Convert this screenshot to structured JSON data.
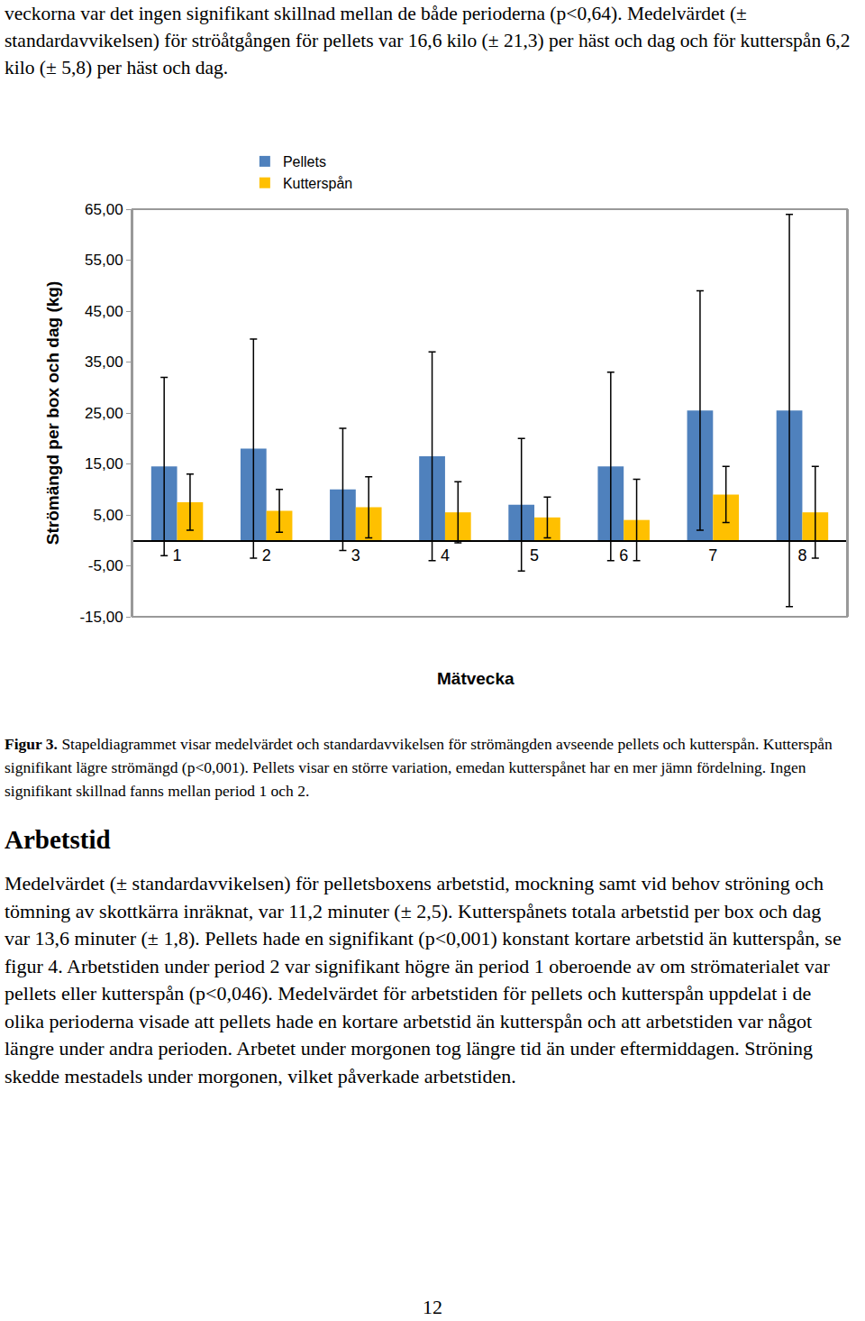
{
  "document": {
    "intro": "veckorna var det ingen signifikant skillnad mellan de både perioderna (p<0,64). Medelvärdet (± standardavvikelsen) för ströåtgången för pellets var 16,6 kilo (± 21,3) per häst och dag och för kutterspån 6,2 kilo (± 5,8) per häst och dag.",
    "figure": {
      "label": "Figur 3.",
      "caption": "Stapeldiagrammet visar medelvärdet och standardavvikelsen för strömängden avseende pellets och kutterspån. Kutterspån signifikant lägre strömängd (p<0,001). Pellets visar en större variation, emedan kutterspånet har en mer jämn fördelning. Ingen signifikant skillnad fanns mellan period 1 och 2."
    },
    "heading": "Arbetstid",
    "body": "Medelvärdet (± standardavvikelsen) för pelletsboxens arbetstid, mockning samt vid behov ströning och tömning av skottkärra inräknat, var 11,2 minuter (± 2,5). Kutterspånets totala arbetstid per box och dag var 13,6 minuter (± 1,8). Pellets hade en signifikant (p<0,001) konstant kortare arbetstid än kutterspån, se figur 4. Arbetstiden under period 2 var signifikant högre än period 1 oberoende av om strömaterialet var pellets eller kutterspån (p<0,046). Medelvärdet för arbetstiden för pellets och kutterspån uppdelat i de olika perioderna visade att pellets hade en kortare arbetstid än kutterspån och att arbetstiden var något längre under andra perioden. Arbetet under morgonen tog längre tid än under eftermiddagen. Ströning skedde mestadels under morgonen, vilket påverkade arbetstiden.",
    "page_number": "12"
  },
  "chart_data": {
    "type": "bar",
    "xlabel": "Mätvecka",
    "ylabel": "Strömängd per box och dag (kg)",
    "categories": [
      "1",
      "2",
      "3",
      "4",
      "5",
      "6",
      "7",
      "8"
    ],
    "series": [
      {
        "name": "Pellets",
        "color": "#4F81BD",
        "values": [
          14.5,
          18,
          10,
          16.5,
          7,
          14.5,
          25.5,
          25.5
        ],
        "error": [
          17.5,
          21.5,
          12,
          20.5,
          13,
          18.5,
          23.5,
          38.5
        ]
      },
      {
        "name": "Kutterspån",
        "color": "#FFC000",
        "values": [
          7.5,
          5.8,
          6.5,
          5.5,
          4.5,
          4,
          9,
          5.5
        ],
        "error": [
          5.5,
          4.2,
          6,
          6,
          4,
          8,
          5.5,
          9
        ]
      }
    ],
    "ylim": [
      -15,
      65
    ],
    "yticks": [
      {
        "value": -15,
        "label": "-15,00"
      },
      {
        "value": -5,
        "label": "-5,00"
      },
      {
        "value": 5,
        "label": "5,00"
      },
      {
        "value": 15,
        "label": "15,00"
      },
      {
        "value": 25,
        "label": "25,00"
      },
      {
        "value": 35,
        "label": "35,00"
      },
      {
        "value": 45,
        "label": "45,00"
      },
      {
        "value": 55,
        "label": "55,00"
      },
      {
        "value": 65,
        "label": "65,00"
      }
    ],
    "grid": false,
    "legend": "top left"
  }
}
